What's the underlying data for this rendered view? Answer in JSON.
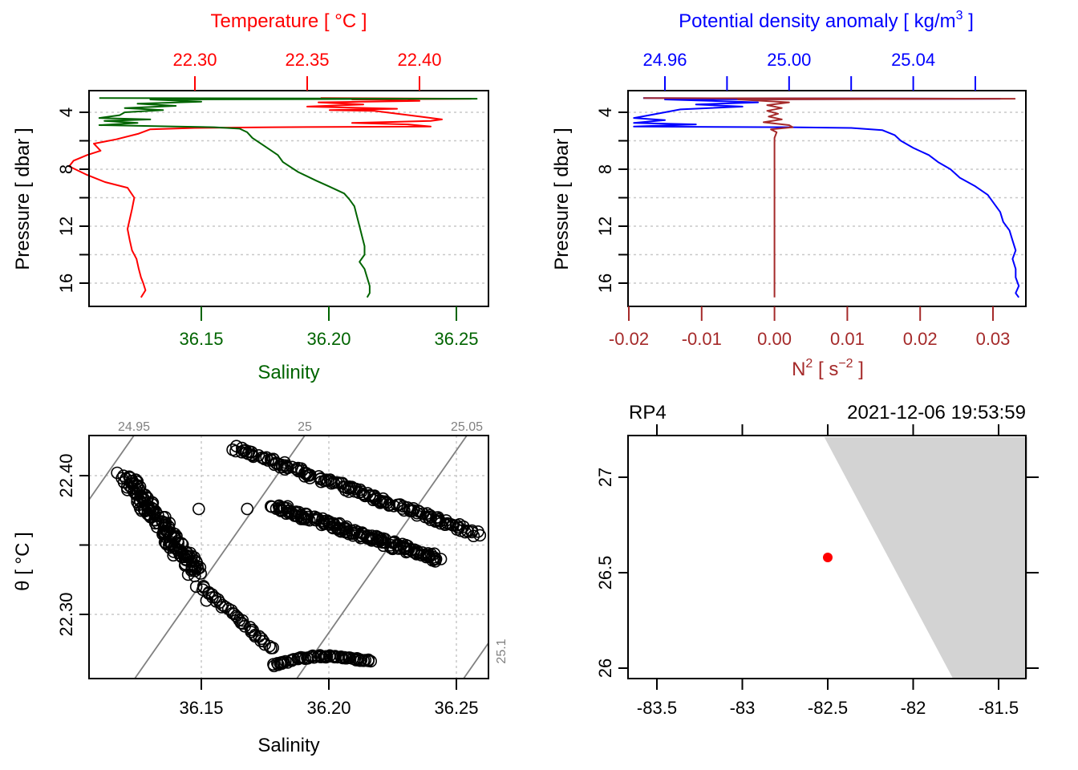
{
  "colors": {
    "temperature": "#ff0000",
    "salinity": "#006400",
    "density": "#0000ff",
    "n2": "#a52a2a",
    "grid": "#c8c8c8",
    "isopycnal": "#808080",
    "land": "#d3d3d3",
    "station": "#ff0000",
    "axis": "#000000"
  },
  "chart_data": [
    {
      "id": "ts-profile",
      "type": "line",
      "title": "Temperature [ °C ]",
      "xlabel_top": "Temperature [ °C ]",
      "xlabel_bottom": "Salinity",
      "ylabel": "Pressure [ dbar ]",
      "ylim": [
        17.5,
        2.5
      ],
      "yticks": [
        4,
        6,
        8,
        10,
        12,
        14,
        16
      ],
      "ytick_labels": [
        "4",
        "",
        "8",
        "",
        "12",
        "",
        "16"
      ],
      "x_top_ticks": [
        22.3,
        22.35,
        22.4
      ],
      "x_top_tick_labels": [
        "22.30",
        "22.35",
        "22.40"
      ],
      "x_bottom_ticks": [
        36.15,
        36.2,
        36.25
      ],
      "x_bottom_tick_labels": [
        "36.15",
        "36.20",
        "36.25"
      ],
      "grid": "horizontal-dotted",
      "series": [
        {
          "name": "Temperature",
          "axis": "top",
          "points": [
            [
              22.356,
              3.0
            ],
            [
              22.423,
              3.05
            ],
            [
              22.37,
              3.1
            ],
            [
              22.4,
              3.2
            ],
            [
              22.355,
              3.3
            ],
            [
              22.375,
              3.45
            ],
            [
              22.35,
              3.6
            ],
            [
              22.39,
              3.75
            ],
            [
              22.36,
              3.85
            ],
            [
              22.38,
              3.9
            ],
            [
              22.385,
              4.0
            ],
            [
              22.39,
              4.1
            ],
            [
              22.4,
              4.3
            ],
            [
              22.41,
              4.5
            ],
            [
              22.405,
              4.6
            ],
            [
              22.37,
              4.75
            ],
            [
              22.395,
              4.85
            ],
            [
              22.405,
              5.0
            ],
            [
              22.335,
              5.05
            ],
            [
              22.3,
              5.1
            ],
            [
              22.28,
              5.2
            ],
            [
              22.275,
              5.5
            ],
            [
              22.265,
              5.9
            ],
            [
              22.255,
              6.2
            ],
            [
              22.258,
              6.7
            ],
            [
              22.252,
              7.0
            ],
            [
              22.246,
              7.4
            ],
            [
              22.244,
              7.8
            ],
            [
              22.252,
              8.4
            ],
            [
              22.26,
              8.9
            ],
            [
              22.27,
              9.3
            ],
            [
              22.273,
              10.0
            ],
            [
              22.272,
              10.8
            ],
            [
              22.271,
              11.5
            ],
            [
              22.27,
              12.2
            ],
            [
              22.271,
              13.0
            ],
            [
              22.272,
              13.7
            ],
            [
              22.274,
              14.3
            ],
            [
              22.275,
              15.0
            ],
            [
              22.276,
              15.6
            ],
            [
              22.277,
              16.0
            ],
            [
              22.278,
              16.5
            ],
            [
              22.276,
              17.0
            ]
          ]
        },
        {
          "name": "Salinity",
          "axis": "bottom",
          "points": [
            [
              36.11,
              3.0
            ],
            [
              36.258,
              3.05
            ],
            [
              36.13,
              3.1
            ],
            [
              36.15,
              3.25
            ],
            [
              36.125,
              3.4
            ],
            [
              36.14,
              3.55
            ],
            [
              36.12,
              3.7
            ],
            [
              36.135,
              3.85
            ],
            [
              36.12,
              4.0
            ],
            [
              36.118,
              4.2
            ],
            [
              36.11,
              4.4
            ],
            [
              36.13,
              4.5
            ],
            [
              36.112,
              4.6
            ],
            [
              36.125,
              4.75
            ],
            [
              36.11,
              4.9
            ],
            [
              36.14,
              5.0
            ],
            [
              36.155,
              5.05
            ],
            [
              36.165,
              5.15
            ],
            [
              36.168,
              5.4
            ],
            [
              36.17,
              5.8
            ],
            [
              36.175,
              6.4
            ],
            [
              36.18,
              7.0
            ],
            [
              36.182,
              7.5
            ],
            [
              36.188,
              8.2
            ],
            [
              36.195,
              8.8
            ],
            [
              36.2,
              9.2
            ],
            [
              36.206,
              9.7
            ],
            [
              36.208,
              10.1
            ],
            [
              36.21,
              10.6
            ],
            [
              36.211,
              11.3
            ],
            [
              36.212,
              12.0
            ],
            [
              36.213,
              12.7
            ],
            [
              36.214,
              13.4
            ],
            [
              36.214,
              14.0
            ],
            [
              36.212,
              14.5
            ],
            [
              36.214,
              15.0
            ],
            [
              36.215,
              15.6
            ],
            [
              36.216,
              16.2
            ],
            [
              36.216,
              16.7
            ],
            [
              36.215,
              17.0
            ]
          ]
        }
      ]
    },
    {
      "id": "density-n2-profile",
      "type": "line",
      "xlabel_top": "Potential density anomaly [ kg/m3 ]",
      "xlabel_bottom": "N2 [ s-2 ]",
      "ylabel": "Pressure [ dbar ]",
      "ylim": [
        17.5,
        2.5
      ],
      "yticks": [
        4,
        6,
        8,
        10,
        12,
        14,
        16
      ],
      "ytick_labels": [
        "4",
        "",
        "8",
        "",
        "12",
        "",
        "16"
      ],
      "x_top_ticks": [
        24.96,
        24.98,
        25.0,
        25.02,
        25.04,
        25.06
      ],
      "x_top_tick_labels": [
        "24.96",
        "",
        "25.00",
        "",
        "25.04",
        ""
      ],
      "x_bottom_ticks": [
        -0.02,
        -0.01,
        0.0,
        0.01,
        0.02,
        0.03
      ],
      "x_bottom_tick_labels": [
        "-0.02",
        "-0.01",
        "0.00",
        "0.01",
        "0.02",
        "0.03"
      ],
      "grid": "horizontal-dotted",
      "series": [
        {
          "name": "Potential density anomaly",
          "axis": "top",
          "points": [
            [
              24.953,
              3.0
            ],
            [
              25.068,
              3.05
            ],
            [
              24.96,
              3.1
            ],
            [
              24.99,
              3.3
            ],
            [
              24.97,
              3.45
            ],
            [
              24.985,
              3.6
            ],
            [
              24.965,
              3.8
            ],
            [
              24.96,
              4.0
            ],
            [
              24.955,
              4.2
            ],
            [
              24.95,
              4.4
            ],
            [
              24.96,
              4.55
            ],
            [
              24.95,
              4.75
            ],
            [
              24.97,
              4.85
            ],
            [
              24.95,
              5.0
            ],
            [
              25.0,
              5.05
            ],
            [
              25.02,
              5.1
            ],
            [
              25.03,
              5.25
            ],
            [
              25.034,
              5.6
            ],
            [
              25.036,
              6.0
            ],
            [
              25.04,
              6.5
            ],
            [
              25.045,
              7.0
            ],
            [
              25.048,
              7.5
            ],
            [
              25.052,
              8.0
            ],
            [
              25.055,
              8.6
            ],
            [
              25.06,
              9.2
            ],
            [
              25.064,
              9.8
            ],
            [
              25.066,
              10.4
            ],
            [
              25.068,
              11.0
            ],
            [
              25.069,
              11.7
            ],
            [
              25.071,
              12.3
            ],
            [
              25.072,
              13.0
            ],
            [
              25.073,
              13.7
            ],
            [
              25.072,
              14.3
            ],
            [
              25.073,
              15.0
            ],
            [
              25.073,
              15.6
            ],
            [
              25.074,
              16.2
            ],
            [
              25.073,
              16.7
            ],
            [
              25.074,
              17.0
            ]
          ]
        },
        {
          "name": "N2",
          "axis": "bottom",
          "points": [
            [
              -0.018,
              3.0
            ],
            [
              0.033,
              3.05
            ],
            [
              -0.005,
              3.1
            ],
            [
              0.002,
              3.3
            ],
            [
              -0.001,
              3.5
            ],
            [
              0.001,
              3.7
            ],
            [
              -0.001,
              3.9
            ],
            [
              0.0005,
              4.1
            ],
            [
              -0.0008,
              4.3
            ],
            [
              0.001,
              4.5
            ],
            [
              -0.0015,
              4.7
            ],
            [
              0.002,
              4.9
            ],
            [
              0.0025,
              5.05
            ],
            [
              -0.0005,
              5.2
            ],
            [
              0.0003,
              5.4
            ],
            [
              0.0,
              5.8
            ],
            [
              0.0,
              7.0
            ],
            [
              0.0,
              9.0
            ],
            [
              0.0,
              11.0
            ],
            [
              0.0,
              13.0
            ],
            [
              0.0,
              15.0
            ],
            [
              0.0,
              17.0
            ]
          ]
        }
      ]
    },
    {
      "id": "ts-diagram",
      "type": "scatter",
      "xlabel": "Salinity",
      "ylabel": "θ [ °C ]",
      "xticks": [
        36.15,
        36.2,
        36.25
      ],
      "xtick_labels": [
        "36.15",
        "36.20",
        "36.25"
      ],
      "yticks": [
        22.3,
        22.35,
        22.4
      ],
      "ytick_labels": [
        "22.30",
        "",
        "22.40"
      ],
      "grid": "dotted",
      "isopycnals": [
        {
          "label": "24.95",
          "value": 24.95
        },
        {
          "label": "25",
          "value": 25.0
        },
        {
          "label": "25.05",
          "value": 25.05
        },
        {
          "label": "25.1",
          "value": 25.1
        }
      ],
      "clusters": [
        {
          "name": "surface-mixed-cluster",
          "from": [
            36.12,
            22.4
          ],
          "to": [
            36.148,
            22.33
          ],
          "spread": 0.006
        },
        {
          "name": "upper-bands",
          "from": [
            36.163,
            22.42
          ],
          "to": [
            36.258,
            22.358
          ],
          "spread": 0.004
        },
        {
          "name": "mid-bands",
          "from": [
            36.178,
            22.378
          ],
          "to": [
            36.243,
            22.34
          ],
          "spread": 0.005
        },
        {
          "name": "deep-tail",
          "from": [
            36.15,
            22.32
          ],
          "to": [
            36.216,
            22.273
          ],
          "spread": 0.002
        }
      ]
    },
    {
      "id": "station-map",
      "type": "scatter",
      "title_left": "RP4",
      "title_right": "2021-12-06 19:53:59",
      "xticks": [
        -83.5,
        -83.0,
        -82.5,
        -82.0,
        -81.5
      ],
      "xtick_labels": [
        "-83.5",
        "-83",
        "-82.5",
        "-82",
        "-81.5"
      ],
      "yticks": [
        26.0,
        26.5,
        27.0
      ],
      "ytick_labels": [
        "26",
        "26.5",
        "27"
      ],
      "xlim": [
        -83.67,
        -81.33
      ],
      "ylim": [
        25.95,
        27.21
      ],
      "station": {
        "lon": -82.5,
        "lat": 26.58
      },
      "land_polygon": [
        [
          -82.52,
          27.21
        ],
        [
          -81.33,
          27.21
        ],
        [
          -81.33,
          25.95
        ],
        [
          -81.77,
          25.95
        ]
      ]
    }
  ]
}
